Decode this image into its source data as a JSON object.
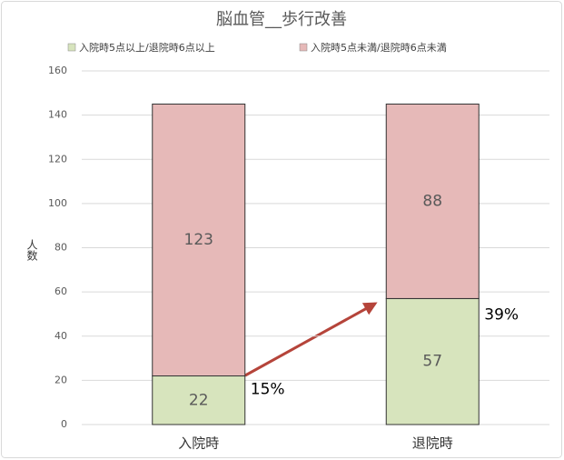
{
  "chart_data": {
    "type": "stacked_bar",
    "title": "脳血管__歩行改善",
    "ylabel": "人数",
    "categories": [
      "入院時",
      "退院時"
    ],
    "series": [
      {
        "name": "入院時5点以上/退院時6点以上",
        "color": "#d7e4bd",
        "values": [
          22,
          57
        ]
      },
      {
        "name": "入院時5点未満/退院時6点未満",
        "color": "#e6b9b8",
        "values": [
          123,
          88
        ]
      }
    ],
    "annotations": [
      "15%",
      "39%"
    ],
    "ylim": [
      0,
      160
    ],
    "yticks": [
      0,
      20,
      40,
      60,
      80,
      100,
      120,
      140,
      160
    ],
    "grid": true,
    "legend": "top"
  }
}
